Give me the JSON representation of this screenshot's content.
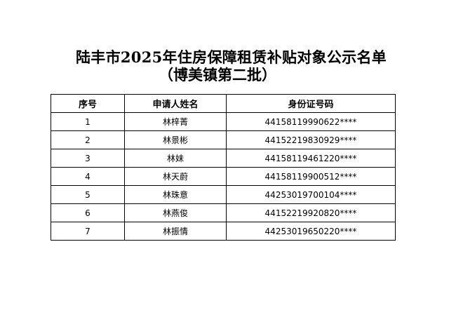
{
  "title": {
    "line1": "陆丰市2025年住房保障租赁补贴对象公示名单",
    "line2": "（博美镇第二批）"
  },
  "table": {
    "headers": [
      "序号",
      "申请人姓名",
      "身份证号码"
    ],
    "rows": [
      [
        "1",
        "林梓菁",
        "44158119990622****"
      ],
      [
        "2",
        "林景彬",
        "44152219830929****"
      ],
      [
        "3",
        "林妹",
        "44158119461220****"
      ],
      [
        "4",
        "林天蔚",
        "44158119900512****"
      ],
      [
        "5",
        "林珠意",
        "44253019700104****"
      ],
      [
        "6",
        "林燕俊",
        "44152219920820****"
      ],
      [
        "7",
        "林振情",
        "44253019650220****"
      ]
    ]
  }
}
